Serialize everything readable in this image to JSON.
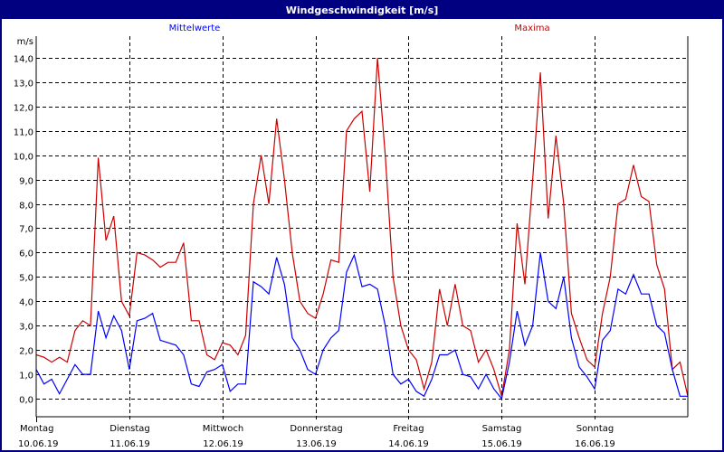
{
  "window": {
    "title": "Windgeschwindigkeit [m/s]"
  },
  "chart_data": {
    "type": "line",
    "title": "Windgeschwindigkeit [m/s]",
    "ylabel": "m/s",
    "ylim": [
      -0.7,
      15.0
    ],
    "yticks": [
      "0,0",
      "1,0",
      "2,0",
      "3,0",
      "4,0",
      "5,0",
      "6,0",
      "7,0",
      "8,0",
      "9,0",
      "10,0",
      "11,0",
      "12,0",
      "13,0",
      "14,0"
    ],
    "grid": true,
    "legend_placement": "top",
    "xlabels": [
      {
        "day": "Montag",
        "date": "10.06.19"
      },
      {
        "day": "Dienstag",
        "date": "11.06.19"
      },
      {
        "day": "Mittwoch",
        "date": "12.06.19"
      },
      {
        "day": "Donnerstag",
        "date": "13.06.19"
      },
      {
        "day": "Freitag",
        "date": "14.06.19"
      },
      {
        "day": "Samstag",
        "date": "15.06.19"
      },
      {
        "day": "Sonntag",
        "date": "16.06.19"
      }
    ],
    "x_step_hours": 2,
    "series": [
      {
        "name": "Mittelwerte",
        "color": "#0000ff",
        "values": [
          1.2,
          0.6,
          0.8,
          0.2,
          0.8,
          1.4,
          1.0,
          1.0,
          3.6,
          2.5,
          3.4,
          2.8,
          1.2,
          3.2,
          3.3,
          3.5,
          2.4,
          2.3,
          2.2,
          1.8,
          0.6,
          0.5,
          1.1,
          1.2,
          1.4,
          0.3,
          0.6,
          0.6,
          4.8,
          4.6,
          4.3,
          5.8,
          4.7,
          2.5,
          2.0,
          1.2,
          1.0,
          2.0,
          2.5,
          2.8,
          5.2,
          5.9,
          4.6,
          4.7,
          4.5,
          3.0,
          1.0,
          0.6,
          0.8,
          0.3,
          0.1,
          0.8,
          1.8,
          1.8,
          2.0,
          1.0,
          0.9,
          0.4,
          1.0,
          0.4,
          0.0,
          1.5,
          3.6,
          2.2,
          3.0,
          6.0,
          4.0,
          3.7,
          5.0,
          2.5,
          1.3,
          0.9,
          0.4,
          2.4,
          2.8,
          4.5,
          4.3,
          5.1,
          4.3,
          4.3,
          3.0,
          2.7,
          1.2,
          0.1,
          0.1
        ]
      },
      {
        "name": "Maxima",
        "color": "#cc0000",
        "values": [
          1.8,
          1.7,
          1.5,
          1.7,
          1.5,
          2.8,
          3.2,
          3.0,
          9.9,
          6.5,
          7.5,
          4.0,
          3.4,
          6.0,
          5.9,
          5.7,
          5.4,
          5.6,
          5.6,
          6.4,
          3.2,
          3.2,
          1.8,
          1.6,
          2.3,
          2.2,
          1.8,
          2.6,
          8.0,
          10.0,
          8.0,
          11.5,
          9.0,
          6.0,
          4.0,
          3.5,
          3.3,
          4.3,
          5.7,
          5.6,
          11.0,
          11.5,
          11.8,
          8.5,
          14.0,
          10.0,
          5.0,
          3.0,
          2.0,
          1.6,
          0.4,
          1.5,
          4.5,
          3.0,
          4.7,
          3.0,
          2.8,
          1.5,
          2.0,
          1.2,
          0.1,
          2.0,
          7.2,
          4.7,
          9.0,
          13.4,
          7.4,
          10.8,
          8.0,
          3.5,
          2.5,
          1.6,
          1.3,
          3.5,
          5.0,
          8.0,
          8.2,
          9.6,
          8.3,
          8.1,
          5.5,
          4.5,
          1.2,
          1.5,
          0.1
        ]
      }
    ]
  }
}
